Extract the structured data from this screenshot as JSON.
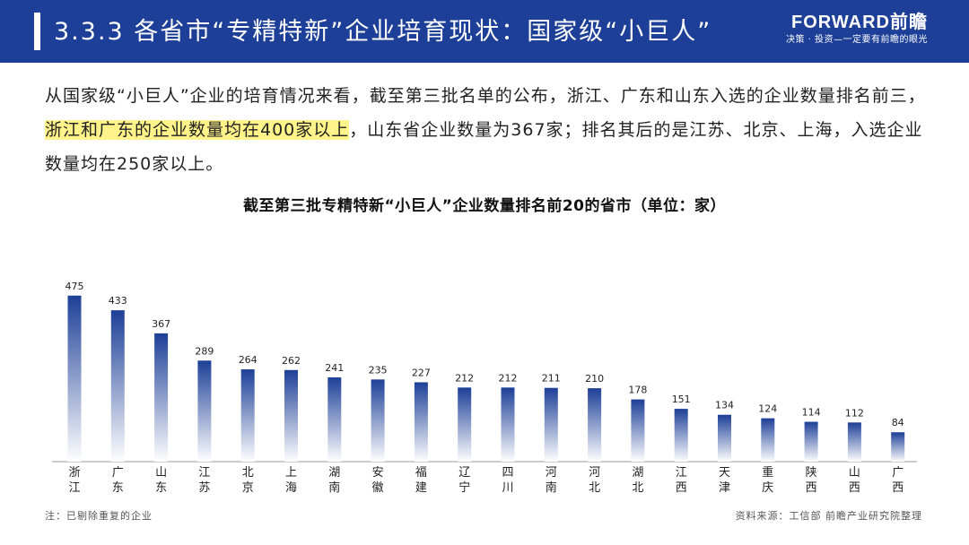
{
  "header": {
    "title": "3.3.3 各省市“专精特新”企业培育现状：国家级“小巨人”",
    "logo_main": "FORWARD前瞻",
    "logo_sub": "决策 · 投资—一定要有前瞻的眼光"
  },
  "intro": {
    "part1": "从国家级“小巨人”企业的培育情况来看，截至第三批名单的公布，浙江、广东和山东入选的企业数量排名前三，",
    "highlight": "浙江和广东的企业数量均在400家以上",
    "part2": "，山东省企业数量为367家；排名其后的是江苏、北京、上海，入选企业数量均在250家以上。"
  },
  "chart_data": {
    "type": "bar",
    "title": "截至第三批专精特新“小巨人”企业数量排名前20的省市（单位：家）",
    "categories": [
      "浙江",
      "广东",
      "山东",
      "江苏",
      "北京",
      "上海",
      "湖南",
      "安徽",
      "福建",
      "辽宁",
      "四川",
      "河南",
      "河北",
      "湖北",
      "江西",
      "天津",
      "重庆",
      "陕西",
      "山西",
      "广西"
    ],
    "values": [
      475,
      433,
      367,
      289,
      264,
      262,
      241,
      235,
      227,
      212,
      212,
      211,
      210,
      178,
      151,
      134,
      124,
      114,
      112,
      84
    ],
    "ylim": [
      0,
      500
    ],
    "grid": false,
    "bar_color_top": "#1d3f97",
    "bar_color_bottom": "#ffffff"
  },
  "footer": {
    "note": "注：已剔除重复的企业",
    "source": "资料来源：工信部 前瞻产业研究院整理"
  }
}
